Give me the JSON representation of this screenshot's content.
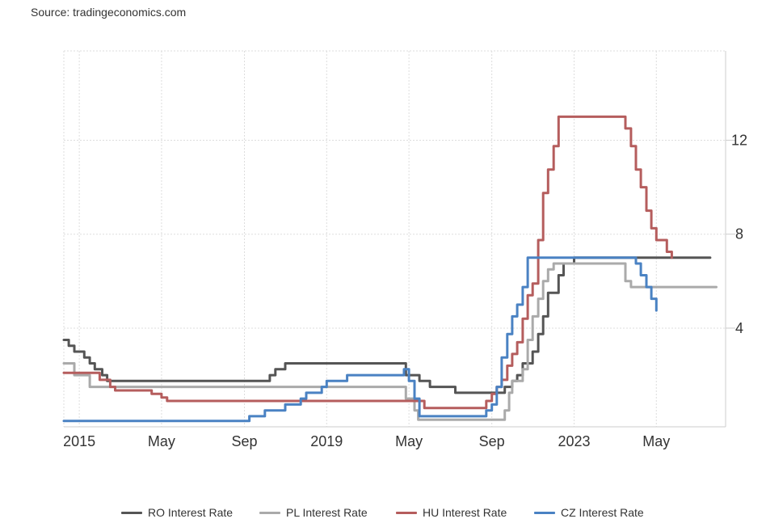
{
  "source": "Source: tradingeconomics.com",
  "chart_data": {
    "type": "line",
    "title": "",
    "xlabel": "",
    "ylabel": "",
    "xlim": [
      2014.75,
      2025.45
    ],
    "ylim": [
      -0.2,
      15.8
    ],
    "y_axis_side": "right",
    "grid": true,
    "legend_position": "bottom",
    "x_ticks": [
      {
        "value": 2015.0,
        "label": "2015"
      },
      {
        "value": 2016.33,
        "label": "May"
      },
      {
        "value": 2017.67,
        "label": "Sep"
      },
      {
        "value": 2019.0,
        "label": "2019"
      },
      {
        "value": 2020.33,
        "label": "May"
      },
      {
        "value": 2021.67,
        "label": "Sep"
      },
      {
        "value": 2023.0,
        "label": "2023"
      },
      {
        "value": 2024.33,
        "label": "May"
      }
    ],
    "y_ticks": [
      {
        "value": 4,
        "label": "4"
      },
      {
        "value": 8,
        "label": "8"
      },
      {
        "value": 12,
        "label": "12"
      }
    ],
    "series": [
      {
        "name": "RO Interest Rate",
        "color": "#555555",
        "points": [
          [
            2014.75,
            3.5
          ],
          [
            2014.83,
            3.25
          ],
          [
            2014.92,
            3.0
          ],
          [
            2015.08,
            2.75
          ],
          [
            2015.17,
            2.5
          ],
          [
            2015.25,
            2.25
          ],
          [
            2015.37,
            2.0
          ],
          [
            2015.45,
            1.75
          ],
          [
            2018.0,
            1.75
          ],
          [
            2018.08,
            2.0
          ],
          [
            2018.17,
            2.25
          ],
          [
            2018.33,
            2.5
          ],
          [
            2020.25,
            2.5
          ],
          [
            2020.28,
            2.0
          ],
          [
            2020.5,
            1.75
          ],
          [
            2020.67,
            1.5
          ],
          [
            2021.08,
            1.25
          ],
          [
            2021.83,
            1.25
          ],
          [
            2021.88,
            1.5
          ],
          [
            2022.0,
            1.75
          ],
          [
            2022.08,
            2.0
          ],
          [
            2022.17,
            2.5
          ],
          [
            2022.33,
            3.0
          ],
          [
            2022.42,
            3.75
          ],
          [
            2022.5,
            4.5
          ],
          [
            2022.58,
            5.5
          ],
          [
            2022.75,
            6.25
          ],
          [
            2022.83,
            6.75
          ],
          [
            2023.0,
            7.0
          ],
          [
            2025.2,
            7.0
          ]
        ]
      },
      {
        "name": "PL Interest Rate",
        "color": "#aaaaaa",
        "points": [
          [
            2014.75,
            2.5
          ],
          [
            2014.92,
            2.0
          ],
          [
            2015.17,
            1.5
          ],
          [
            2020.25,
            1.5
          ],
          [
            2020.28,
            1.0
          ],
          [
            2020.42,
            0.5
          ],
          [
            2020.48,
            0.1
          ],
          [
            2021.83,
            0.1
          ],
          [
            2021.88,
            0.5
          ],
          [
            2021.95,
            1.25
          ],
          [
            2022.0,
            1.75
          ],
          [
            2022.17,
            2.25
          ],
          [
            2022.25,
            3.5
          ],
          [
            2022.33,
            4.5
          ],
          [
            2022.42,
            5.25
          ],
          [
            2022.5,
            6.0
          ],
          [
            2022.58,
            6.5
          ],
          [
            2022.67,
            6.75
          ],
          [
            2023.75,
            6.75
          ],
          [
            2023.83,
            6.0
          ],
          [
            2023.92,
            5.75
          ],
          [
            2025.3,
            5.75
          ]
        ]
      },
      {
        "name": "HU Interest Rate",
        "color": "#b55d5d",
        "points": [
          [
            2014.75,
            2.1
          ],
          [
            2015.25,
            2.1
          ],
          [
            2015.33,
            1.8
          ],
          [
            2015.5,
            1.5
          ],
          [
            2015.58,
            1.35
          ],
          [
            2016.17,
            1.2
          ],
          [
            2016.33,
            1.05
          ],
          [
            2016.42,
            0.9
          ],
          [
            2020.48,
            0.9
          ],
          [
            2020.58,
            0.6
          ],
          [
            2021.5,
            0.6
          ],
          [
            2021.58,
            0.9
          ],
          [
            2021.67,
            1.2
          ],
          [
            2021.75,
            1.5
          ],
          [
            2021.83,
            1.8
          ],
          [
            2021.92,
            2.4
          ],
          [
            2022.0,
            2.9
          ],
          [
            2022.08,
            3.4
          ],
          [
            2022.17,
            4.4
          ],
          [
            2022.25,
            5.4
          ],
          [
            2022.33,
            5.9
          ],
          [
            2022.42,
            7.75
          ],
          [
            2022.5,
            9.75
          ],
          [
            2022.58,
            10.75
          ],
          [
            2022.67,
            11.75
          ],
          [
            2022.75,
            13.0
          ],
          [
            2023.75,
            13.0
          ],
          [
            2023.83,
            12.5
          ],
          [
            2023.92,
            11.75
          ],
          [
            2024.0,
            10.75
          ],
          [
            2024.08,
            10.0
          ],
          [
            2024.17,
            9.0
          ],
          [
            2024.25,
            8.25
          ],
          [
            2024.33,
            7.75
          ],
          [
            2024.5,
            7.25
          ],
          [
            2024.58,
            7.0
          ]
        ]
      },
      {
        "name": "CZ Interest Rate",
        "color": "#4a82c3",
        "points": [
          [
            2014.75,
            0.05
          ],
          [
            2017.67,
            0.05
          ],
          [
            2017.75,
            0.25
          ],
          [
            2018.0,
            0.5
          ],
          [
            2018.33,
            0.75
          ],
          [
            2018.58,
            1.0
          ],
          [
            2018.67,
            1.25
          ],
          [
            2018.92,
            1.5
          ],
          [
            2019.0,
            1.75
          ],
          [
            2019.33,
            2.0
          ],
          [
            2020.17,
            2.0
          ],
          [
            2020.25,
            2.25
          ],
          [
            2020.33,
            1.75
          ],
          [
            2020.42,
            1.0
          ],
          [
            2020.5,
            0.25
          ],
          [
            2021.48,
            0.25
          ],
          [
            2021.58,
            0.5
          ],
          [
            2021.67,
            0.75
          ],
          [
            2021.75,
            1.5
          ],
          [
            2021.83,
            2.75
          ],
          [
            2021.92,
            3.75
          ],
          [
            2022.0,
            4.5
          ],
          [
            2022.08,
            5.0
          ],
          [
            2022.17,
            5.75
          ],
          [
            2022.25,
            7.0
          ],
          [
            2023.92,
            7.0
          ],
          [
            2024.0,
            6.75
          ],
          [
            2024.08,
            6.25
          ],
          [
            2024.17,
            5.75
          ],
          [
            2024.25,
            5.25
          ],
          [
            2024.33,
            4.75
          ]
        ]
      }
    ]
  }
}
